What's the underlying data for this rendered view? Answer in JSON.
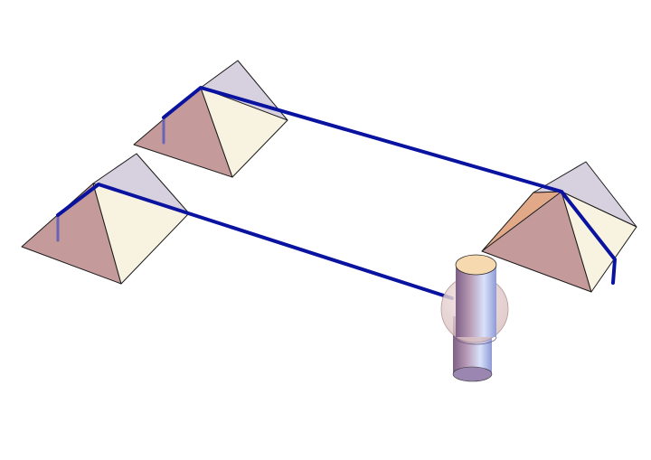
{
  "colors": {
    "background": "#ffffff",
    "roof_front": "#f8f3e1",
    "roof_left": "#c49a9a",
    "roof_back": "#d7d0df",
    "roof_right_face": "#e1a987",
    "beam": "#0a13a0",
    "beam_post": "#6a64b8",
    "pillar_light": "#c8d2f2",
    "pillar_dark": "#8c6f98",
    "pillar_cap": "#f7d9b0",
    "sphere": "#e6cfcf"
  },
  "scene": {
    "objects": [
      {
        "kind": "prism",
        "label": "prism-top-left"
      },
      {
        "kind": "prism",
        "label": "prism-middle-left"
      },
      {
        "kind": "prism",
        "label": "prism-right"
      },
      {
        "kind": "cylinder-with-sphere",
        "label": "pillar"
      }
    ],
    "beam_count": 3
  }
}
